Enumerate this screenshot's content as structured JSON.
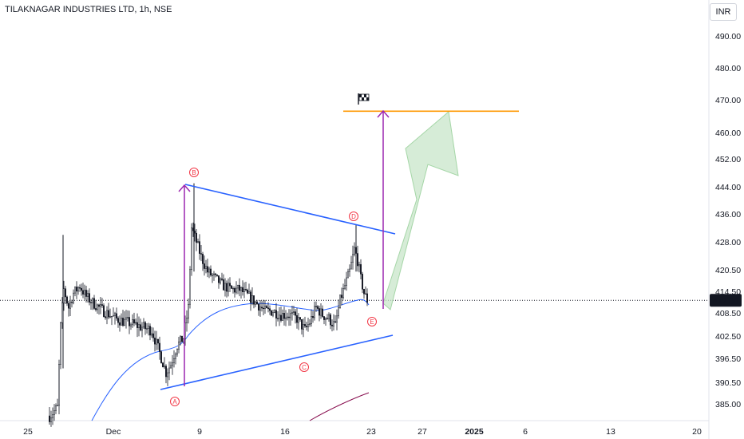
{
  "header": {
    "title": "TILAKNAGAR INDUSTRIES LTD, 1h, NSE",
    "currency": "INR"
  },
  "chart_data": {
    "type": "candlestick",
    "title": "TILAKNAGAR INDUSTRIES LTD, 1h, NSE",
    "y_ticks": [
      490.0,
      480.0,
      470.0,
      460.0,
      452.0,
      444.0,
      436.0,
      428.0,
      420.5,
      414.5,
      408.5,
      402.5,
      396.5,
      390.5,
      385.0
    ],
    "y_tick_labels": [
      "490.00",
      "480.00",
      "470.00",
      "460.00",
      "452.00",
      "444.00",
      "436.00",
      "428.00",
      "420.50",
      "414.50",
      "408.50",
      "402.50",
      "396.50",
      "390.50",
      "385.00"
    ],
    "x_ticks": [
      "25",
      "Dec",
      "9",
      "16",
      "23",
      "27",
      "2025",
      "6",
      "13",
      "20"
    ],
    "last_price": "412.00",
    "last_price_value": 412.0,
    "wave_labels": [
      "A",
      "B",
      "C",
      "D",
      "E"
    ],
    "target_price": 466.5,
    "colors": {
      "candle": "#131722",
      "trendline": "#2962ff",
      "moving_average_blue": "#2962ff",
      "moving_average_red": "#880e4f",
      "target_line": "#ff9800",
      "measure_arrow": "#9c27b0",
      "projection_arrow_fill": "#c8e6c9",
      "projection_arrow_stroke": "#a5d6a7",
      "wave_label": "#f23645",
      "price_tag_bg": "#131722"
    },
    "icons": {
      "target_flag": "checkered-flag-icon"
    },
    "grid": false
  }
}
